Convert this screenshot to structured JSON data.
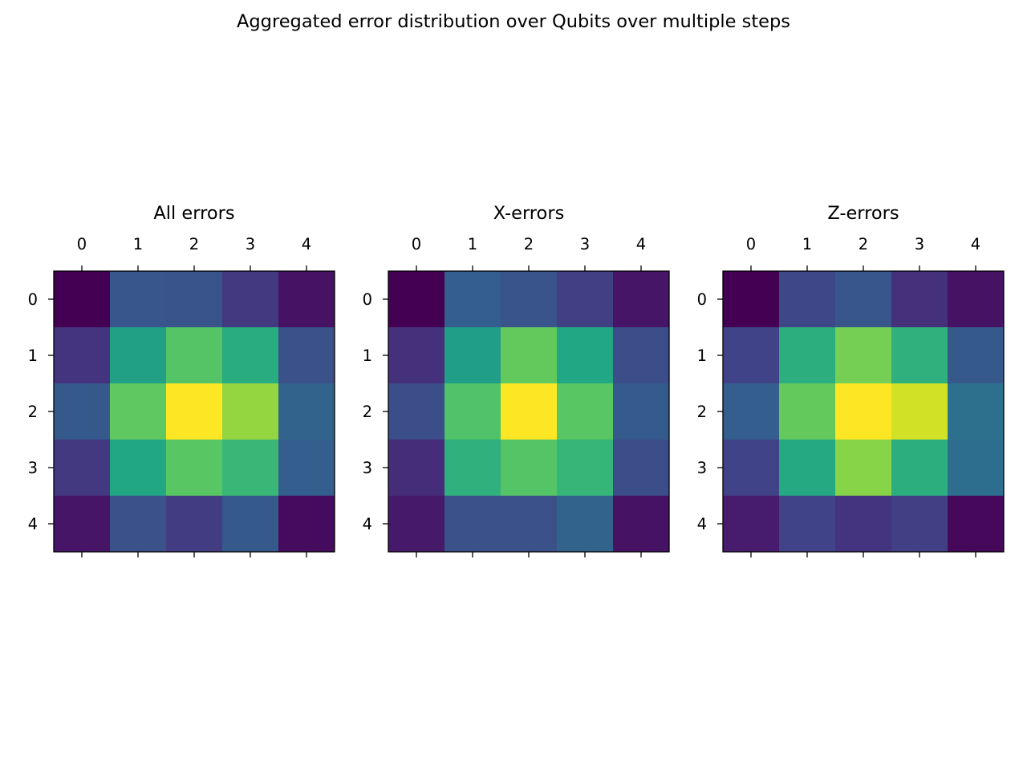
{
  "figure": {
    "title": "Aggregated error distribution over Qubits over multiple steps"
  },
  "chart_data": [
    {
      "type": "heatmap",
      "title": "All errors",
      "x_ticks": [
        "0",
        "1",
        "2",
        "3",
        "4"
      ],
      "y_ticks": [
        "0",
        "1",
        "2",
        "3",
        "4"
      ],
      "colormap": "viridis",
      "values": [
        [
          0.0,
          0.27,
          0.26,
          0.17,
          0.05
        ],
        [
          0.15,
          0.57,
          0.73,
          0.62,
          0.25
        ],
        [
          0.28,
          0.75,
          1.0,
          0.84,
          0.32
        ],
        [
          0.17,
          0.6,
          0.74,
          0.67,
          0.3
        ],
        [
          0.06,
          0.25,
          0.18,
          0.28,
          0.03
        ]
      ]
    },
    {
      "type": "heatmap",
      "title": "X-errors",
      "x_ticks": [
        "0",
        "1",
        "2",
        "3",
        "4"
      ],
      "y_ticks": [
        "0",
        "1",
        "2",
        "3",
        "4"
      ],
      "colormap": "viridis",
      "values": [
        [
          0.0,
          0.3,
          0.26,
          0.19,
          0.06
        ],
        [
          0.14,
          0.56,
          0.76,
          0.6,
          0.24
        ],
        [
          0.24,
          0.72,
          1.0,
          0.74,
          0.29
        ],
        [
          0.13,
          0.64,
          0.73,
          0.66,
          0.24
        ],
        [
          0.07,
          0.25,
          0.25,
          0.32,
          0.05
        ]
      ]
    },
    {
      "type": "heatmap",
      "title": "Z-errors",
      "x_ticks": [
        "0",
        "1",
        "2",
        "3",
        "4"
      ],
      "y_ticks": [
        "0",
        "1",
        "2",
        "3",
        "4"
      ],
      "colormap": "viridis",
      "values": [
        [
          0.0,
          0.22,
          0.27,
          0.14,
          0.05
        ],
        [
          0.2,
          0.63,
          0.79,
          0.64,
          0.28
        ],
        [
          0.3,
          0.76,
          1.0,
          0.93,
          0.37
        ],
        [
          0.2,
          0.61,
          0.82,
          0.63,
          0.36
        ],
        [
          0.08,
          0.2,
          0.15,
          0.19,
          0.02
        ]
      ]
    }
  ]
}
